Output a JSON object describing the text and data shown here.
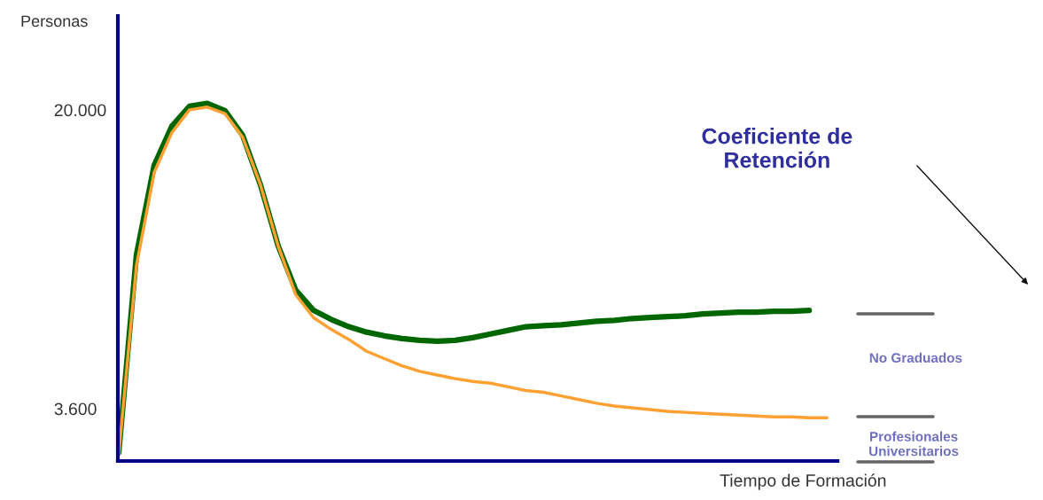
{
  "chart_data": {
    "type": "line",
    "xlabel": "Tiempo de Formación",
    "ylabel": "Personas",
    "categories": [
      null,
      null,
      null,
      null,
      null,
      null,
      null,
      null,
      null,
      null,
      null,
      null,
      null,
      null,
      null,
      null,
      null,
      null,
      null,
      null,
      null,
      null,
      null,
      null,
      null,
      null,
      null,
      null,
      null,
      null,
      null,
      null,
      null,
      null,
      null,
      null,
      null,
      null,
      null,
      null,
      null
    ],
    "series": [
      {
        "color": "#006600",
        "values": [
          1200,
          12050,
          16950,
          19100,
          20200,
          20350,
          19950,
          18600,
          15900,
          12550,
          10100,
          9000,
          8500,
          8100,
          7800,
          7600,
          7450,
          7350,
          7300,
          7350,
          7500,
          7700,
          7900,
          8100,
          8150,
          8200,
          8300,
          8400,
          8450,
          8550,
          8600,
          8650,
          8700,
          8800,
          8850,
          8900,
          8900,
          8950,
          8950,
          9000,
          null
        ]
      },
      {
        "color": "#ffa033",
        "values": [
          1100,
          11450,
          16550,
          18750,
          20000,
          20150,
          19800,
          18500,
          15900,
          12550,
          9850,
          8600,
          7950,
          7400,
          6750,
          6350,
          5950,
          5650,
          5450,
          5250,
          5100,
          5000,
          4800,
          4600,
          4500,
          4300,
          4100,
          3900,
          3750,
          3650,
          3550,
          3450,
          3400,
          3350,
          3300,
          3250,
          3200,
          3150,
          3150,
          3100,
          3100
        ]
      }
    ],
    "ylim": [
      730,
      25150
    ],
    "yticks": [
      {
        "value": 20000,
        "label": "20.000"
      },
      {
        "value": 3600,
        "label": "3.600"
      }
    ],
    "tick_labels": "y",
    "grid": false,
    "legend": false,
    "annotations": [
      "Coeficiente de\nRetención",
      "No Graduados",
      "Profesionales\nUniversitarios"
    ]
  }
}
